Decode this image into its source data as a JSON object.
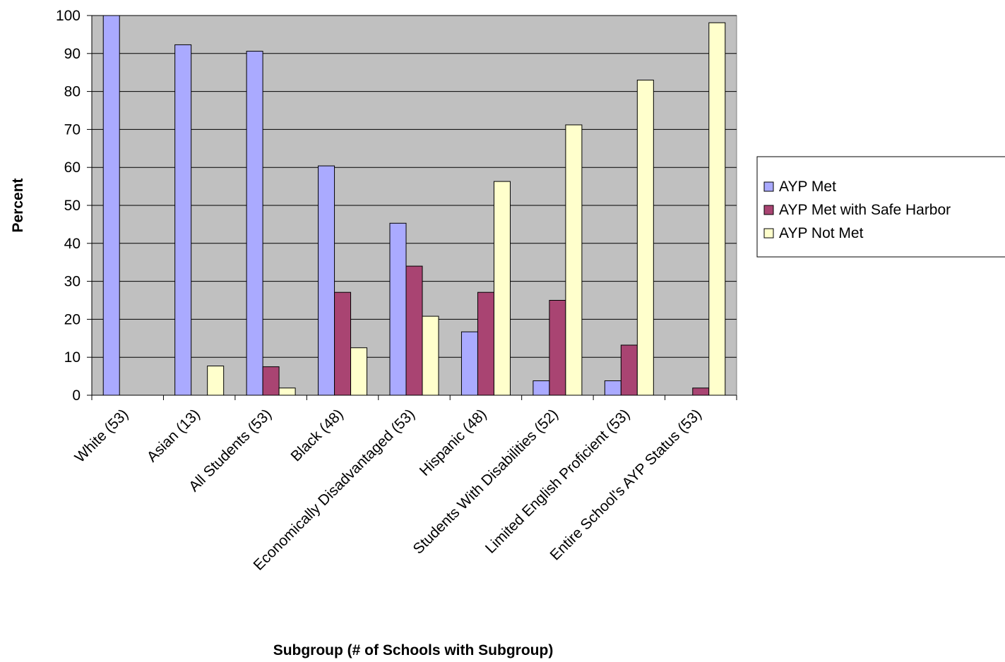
{
  "chart_data": {
    "type": "bar",
    "title": "",
    "xlabel": "Subgroup (# of Schools with Subgroup)",
    "ylabel": "Percent",
    "ylim": [
      0,
      100
    ],
    "yticks": [
      "0",
      "10",
      "20",
      "30",
      "40",
      "50",
      "60",
      "70",
      "80",
      "90",
      "100"
    ],
    "grid": true,
    "legend_position": "right",
    "categories": [
      "White (53)",
      "Asian (13)",
      "All Students (53)",
      "Black (48)",
      "Economically Disadvantaged (53)",
      "Hispanic (48)",
      "Students With Disabilities (52)",
      "Limited English Proficient (53)",
      "Entire School's AYP Status (53)"
    ],
    "series": [
      {
        "name": "AYP Met",
        "color": "#aaaaff",
        "values": [
          100,
          92.3,
          90.6,
          60.4,
          45.3,
          16.7,
          3.8,
          3.8,
          0
        ]
      },
      {
        "name": "AYP Met with Safe Harbor",
        "color": "#a94472",
        "values": [
          0,
          0,
          7.5,
          27.1,
          34.0,
          27.1,
          25.0,
          13.2,
          1.9
        ]
      },
      {
        "name": "AYP Not Met",
        "color": "#ffffcc",
        "values": [
          0,
          7.7,
          1.9,
          12.5,
          20.8,
          56.3,
          71.2,
          83.0,
          98.1
        ]
      }
    ],
    "colors": {
      "plot_background": "#c0c0c0",
      "bar_outline": "#000000"
    }
  }
}
